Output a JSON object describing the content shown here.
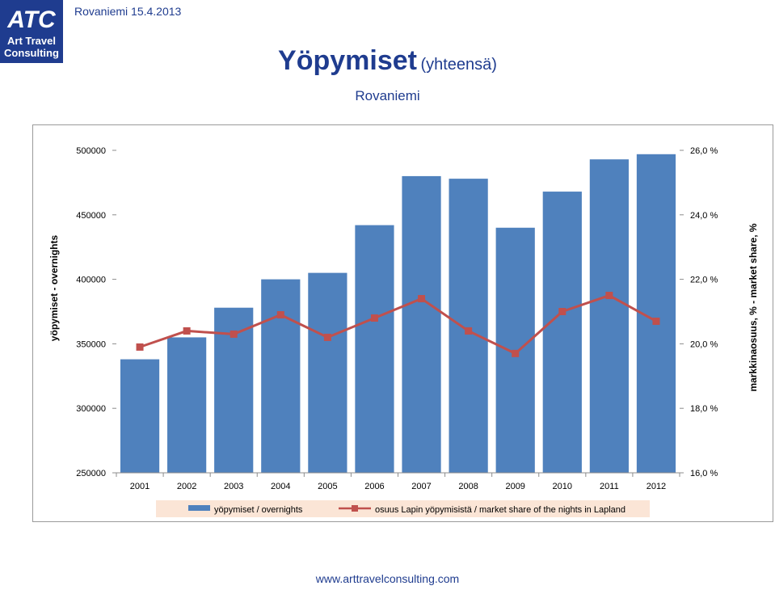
{
  "header": {
    "logo_text_line1": "Art Travel",
    "logo_text_line2": "Consulting",
    "logo_mark": "ATC",
    "date_label": "Rovaniemi 15.4.2013",
    "title": "Yöpymiset",
    "title_suffix": "(yhteensä)",
    "subtitle": "Rovaniemi"
  },
  "footer": {
    "url": "www.arttravelconsulting.com"
  },
  "colors": {
    "brand": "#1f3c8f",
    "bar": "#4f81bd",
    "line": "#c0504d",
    "legend_bg": "#fbe5d6"
  },
  "chart_data": {
    "type": "bar",
    "categories": [
      "2001",
      "2002",
      "2003",
      "2004",
      "2005",
      "2006",
      "2007",
      "2008",
      "2009",
      "2010",
      "2011",
      "2012"
    ],
    "series": [
      {
        "name": "yöpymiset / overnights",
        "type": "bar",
        "axis": "left",
        "values": [
          338000,
          355000,
          378000,
          400000,
          405000,
          442000,
          480000,
          478000,
          440000,
          468000,
          493000,
          497000
        ]
      },
      {
        "name": "osuus Lapin yöpymisistä / market share of the nights in Lapland",
        "type": "line",
        "axis": "right",
        "values": [
          19.9,
          20.4,
          20.3,
          20.9,
          20.2,
          20.8,
          21.4,
          20.4,
          19.7,
          21.0,
          21.5,
          20.7
        ]
      }
    ],
    "ylabel": "yöpymiset - overnights",
    "y2label": "markkinaosuus, % - market share, %",
    "ylim": [
      250000,
      500000
    ],
    "y2lim": [
      16,
      26
    ],
    "yticks": [
      "250000",
      "300000",
      "350000",
      "400000",
      "450000",
      "500000"
    ],
    "y2ticks": [
      "16,0 %",
      "18,0 %",
      "20,0 %",
      "22,0 %",
      "24,0 %",
      "26,0 %"
    ],
    "grid": false,
    "legend_position": "bottom"
  }
}
